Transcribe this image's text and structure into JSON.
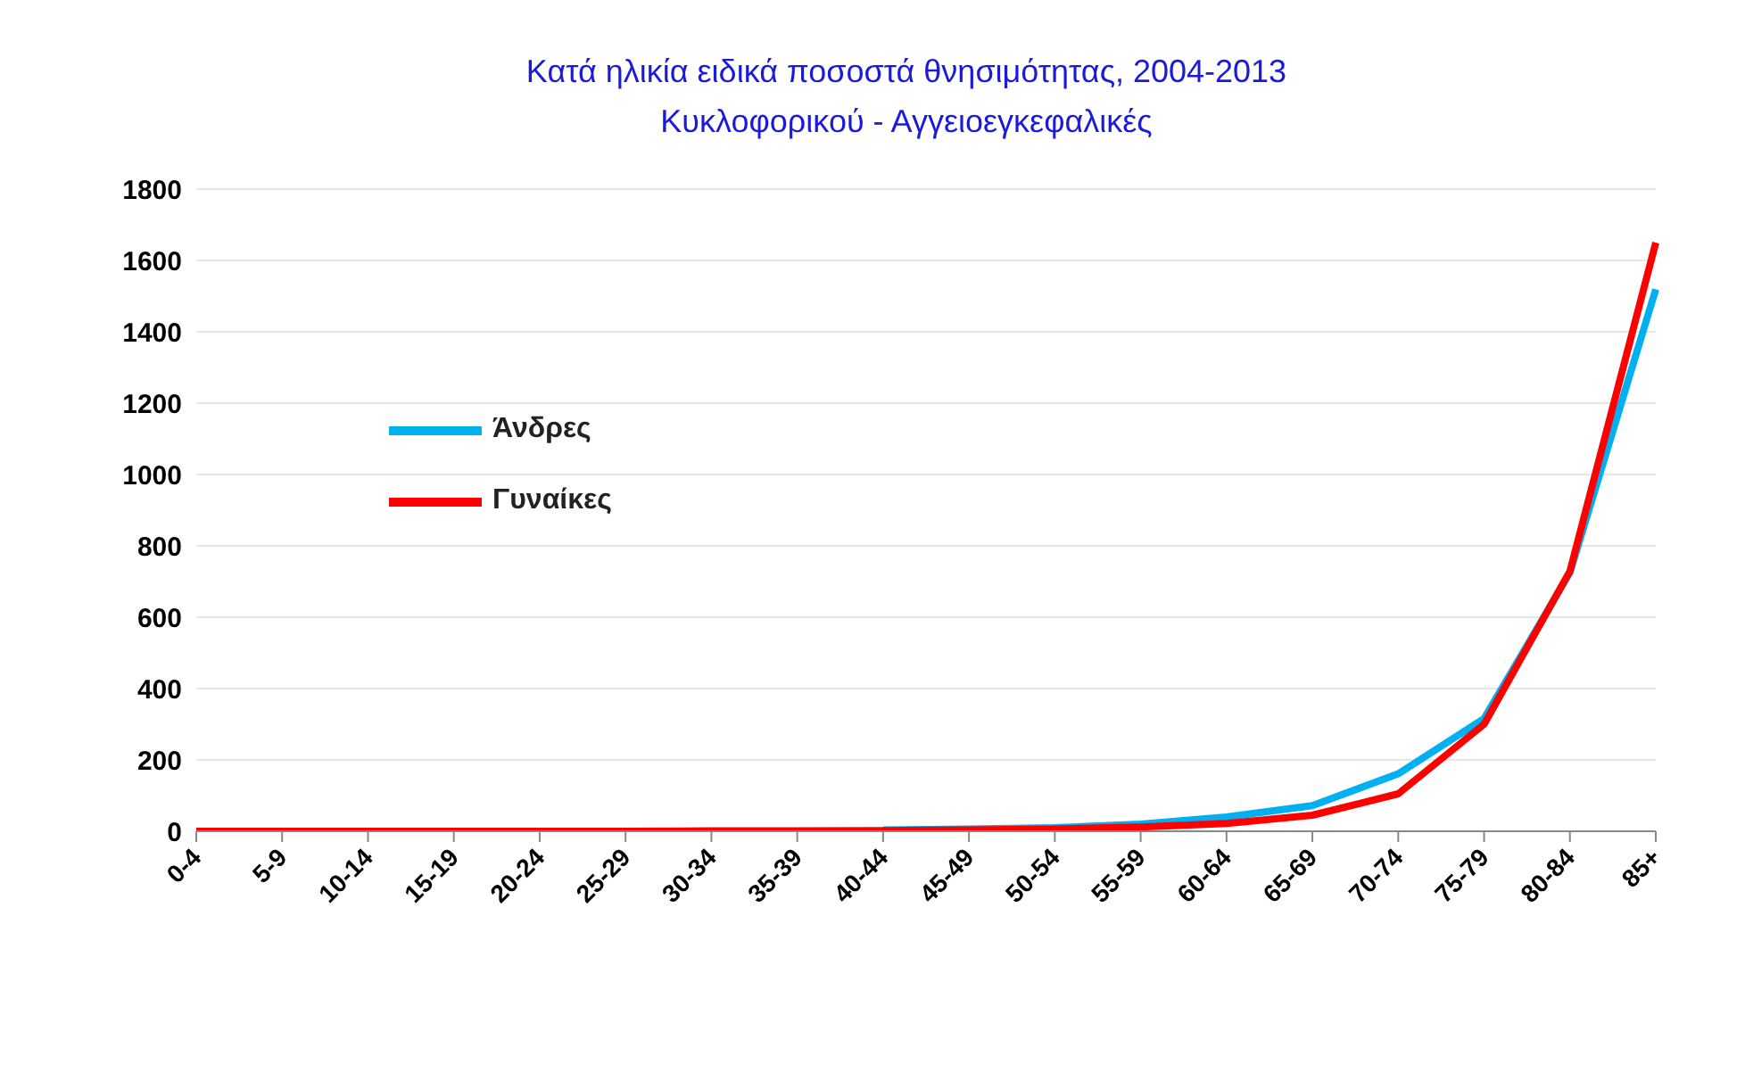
{
  "chart_data": {
    "type": "line",
    "title": "Κατά ηλικία ειδικά ποσοστά θνησιμότητας, 2004-2013",
    "subtitle": "Κυκλοφορικού  -   Αγγειοεγκεφαλικές",
    "categories": [
      "0-4",
      "5-9",
      "10-14",
      "15-19",
      "20-24",
      "25-29",
      "30-34",
      "35-39",
      "40-44",
      "45-49",
      "50-54",
      "55-59",
      "60-64",
      "65-69",
      "70-74",
      "75-79",
      "80-84",
      "85+"
    ],
    "series": [
      {
        "name": "Άνδρες",
        "color": "#00b0f0",
        "values": [
          null,
          null,
          null,
          null,
          null,
          null,
          null,
          null,
          4,
          6,
          10,
          20,
          40,
          72,
          161,
          316,
          725,
          1519
        ]
      },
      {
        "name": "Γυναίκες",
        "color": "#ff0000",
        "values": [
          0,
          0,
          0,
          0,
          0,
          0,
          1,
          1,
          2,
          4,
          6,
          12,
          22,
          45,
          105,
          300,
          729,
          1650
        ]
      }
    ],
    "ylim": [
      0,
      1800
    ],
    "yticks": [
      0,
      200,
      400,
      600,
      800,
      1000,
      1200,
      1400,
      1600,
      1800
    ],
    "grid": "y",
    "legend": "left",
    "marker": "none",
    "line_style": "solid"
  }
}
